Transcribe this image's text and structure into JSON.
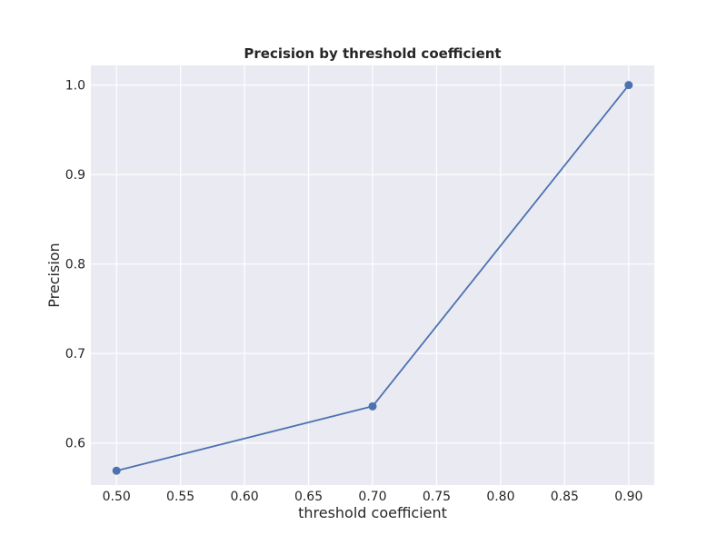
{
  "chart_data": {
    "type": "line",
    "title": "Precision by threshold coefficient",
    "xlabel": "threshold coefficient",
    "ylabel": "Precision",
    "xlim": [
      0.48,
      0.92
    ],
    "ylim": [
      0.553,
      1.022
    ],
    "x_ticks": [
      "0.50",
      "0.55",
      "0.60",
      "0.65",
      "0.70",
      "0.75",
      "0.80",
      "0.85",
      "0.90"
    ],
    "y_ticks": [
      "0.6",
      "0.7",
      "0.8",
      "0.9",
      "1.0"
    ],
    "grid": true,
    "legend": "none",
    "series": [
      {
        "x": [
          0.5,
          0.7,
          0.9
        ],
        "values": [
          0.569,
          0.641,
          1.0
        ],
        "color": "#4c72b0",
        "marker": "circle"
      }
    ],
    "background_color": "#eaeaf2",
    "grid_color": "#ffffff"
  }
}
